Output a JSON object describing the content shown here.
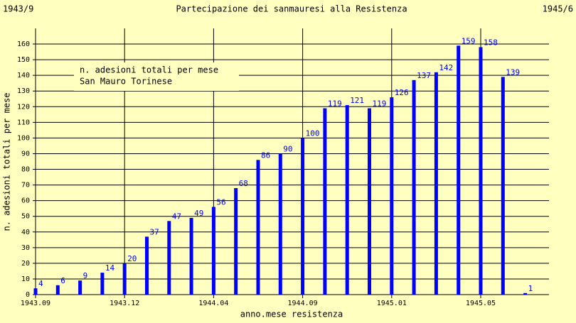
{
  "chart_data": {
    "type": "bar",
    "title": "Partecipazione dei sanmauresi alla Resistenza",
    "corner_left": "1943/9",
    "corner_right": "1945/6",
    "x_label": "anno.mese resistenza",
    "y_label": "n. adesioni totali per mese",
    "legend_subtitle": "San Mauro Torinese",
    "categories": [
      "1943.09",
      null,
      null,
      null,
      "1943.12",
      null,
      null,
      null,
      "1944.04",
      null,
      null,
      null,
      "1944.09",
      null,
      null,
      null,
      "1945.01",
      null,
      null,
      null,
      "1945.05",
      null,
      null
    ],
    "series": [
      {
        "name": "n. adesioni totali per mese",
        "color": "#0000ff",
        "values": [
          4,
          6,
          9,
          14,
          20,
          37,
          47,
          49,
          56,
          68,
          86,
          90,
          100,
          119,
          121,
          119,
          126,
          137,
          142,
          159,
          158,
          139,
          1
        ]
      }
    ],
    "ylim": [
      0,
      170
    ],
    "yticks": [
      0,
      10,
      20,
      30,
      40,
      50,
      60,
      70,
      80,
      90,
      100,
      110,
      120,
      130,
      140,
      150,
      160
    ],
    "grid": true,
    "background": "#ffffc0"
  }
}
